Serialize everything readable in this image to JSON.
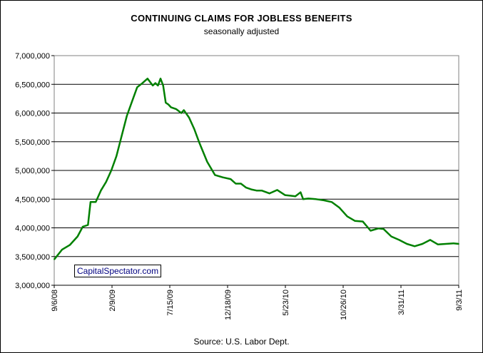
{
  "chart_data": {
    "type": "line",
    "title": "CONTINUING CLAIMS FOR JOBLESS BENEFITS",
    "subtitle": "seasonally adjusted",
    "source": "Source: U.S. Labor Dept.",
    "watermark": "CapitalSpectator.com",
    "ylim": [
      3000000,
      7000000
    ],
    "yticks": [
      3000000,
      3500000,
      4000000,
      4500000,
      5000000,
      5500000,
      6000000,
      6500000,
      7000000
    ],
    "ytick_labels": [
      "3,000,000",
      "3,500,000",
      "4,000,000",
      "4,500,000",
      "5,000,000",
      "5,500,000",
      "6,000,000",
      "6,500,000",
      "7,000,000"
    ],
    "xlim": [
      "2008-09-06",
      "2011-09-03"
    ],
    "xticks": [
      "2008-09-06",
      "2009-02-09",
      "2009-07-15",
      "2009-12-18",
      "2010-05-23",
      "2010-10-26",
      "2011-03-31",
      "2011-09-03"
    ],
    "xtick_labels": [
      "9/6/08",
      "2/9/09",
      "7/15/09",
      "12/18/09",
      "5/23/10",
      "10/26/10",
      "3/31/11",
      "9/3/11"
    ],
    "grid": "horizontal",
    "line_color": "#008000",
    "series": [
      {
        "x": [
          "2008-09-06",
          "2008-09-27",
          "2008-10-18",
          "2008-11-08",
          "2008-11-22",
          "2008-12-06",
          "2008-12-13",
          "2008-12-27",
          "2009-01-10",
          "2009-01-24",
          "2009-02-07",
          "2009-02-21",
          "2009-03-07",
          "2009-03-21",
          "2009-04-04",
          "2009-04-18",
          "2009-05-02",
          "2009-05-16",
          "2009-05-30",
          "2009-06-06",
          "2009-06-13",
          "2009-06-20",
          "2009-06-27",
          "2009-07-04",
          "2009-07-11",
          "2009-07-18",
          "2009-08-01",
          "2009-08-15",
          "2009-08-22",
          "2009-09-05",
          "2009-09-19",
          "2009-10-03",
          "2009-10-24",
          "2009-11-14",
          "2009-12-05",
          "2009-12-26",
          "2010-01-09",
          "2010-01-23",
          "2010-02-06",
          "2010-02-20",
          "2010-03-06",
          "2010-03-20",
          "2010-04-10",
          "2010-05-01",
          "2010-05-22",
          "2010-06-05",
          "2010-06-19",
          "2010-07-03",
          "2010-07-10",
          "2010-07-24",
          "2010-08-14",
          "2010-09-04",
          "2010-09-25",
          "2010-10-16",
          "2010-11-06",
          "2010-11-27",
          "2010-12-18",
          "2011-01-08",
          "2011-01-29",
          "2011-02-12",
          "2011-03-05",
          "2011-03-26",
          "2011-04-16",
          "2011-05-07",
          "2011-05-28",
          "2011-06-18",
          "2011-07-09",
          "2011-07-30",
          "2011-08-20",
          "2011-09-03"
        ],
        "values": [
          3450000,
          3620000,
          3700000,
          3850000,
          4020000,
          4050000,
          4450000,
          4450000,
          4650000,
          4800000,
          5000000,
          5250000,
          5600000,
          5950000,
          6200000,
          6450000,
          6520000,
          6600000,
          6480000,
          6520000,
          6480000,
          6600000,
          6480000,
          6180000,
          6150000,
          6100000,
          6070000,
          6000000,
          6050000,
          5920000,
          5720000,
          5480000,
          5150000,
          4920000,
          4880000,
          4850000,
          4770000,
          4770000,
          4700000,
          4670000,
          4650000,
          4650000,
          4600000,
          4660000,
          4570000,
          4560000,
          4550000,
          4620000,
          4500000,
          4510000,
          4500000,
          4480000,
          4450000,
          4350000,
          4200000,
          4120000,
          4110000,
          3950000,
          3990000,
          3980000,
          3850000,
          3790000,
          3720000,
          3680000,
          3720000,
          3790000,
          3710000,
          3720000,
          3730000,
          3720000
        ]
      }
    ]
  }
}
